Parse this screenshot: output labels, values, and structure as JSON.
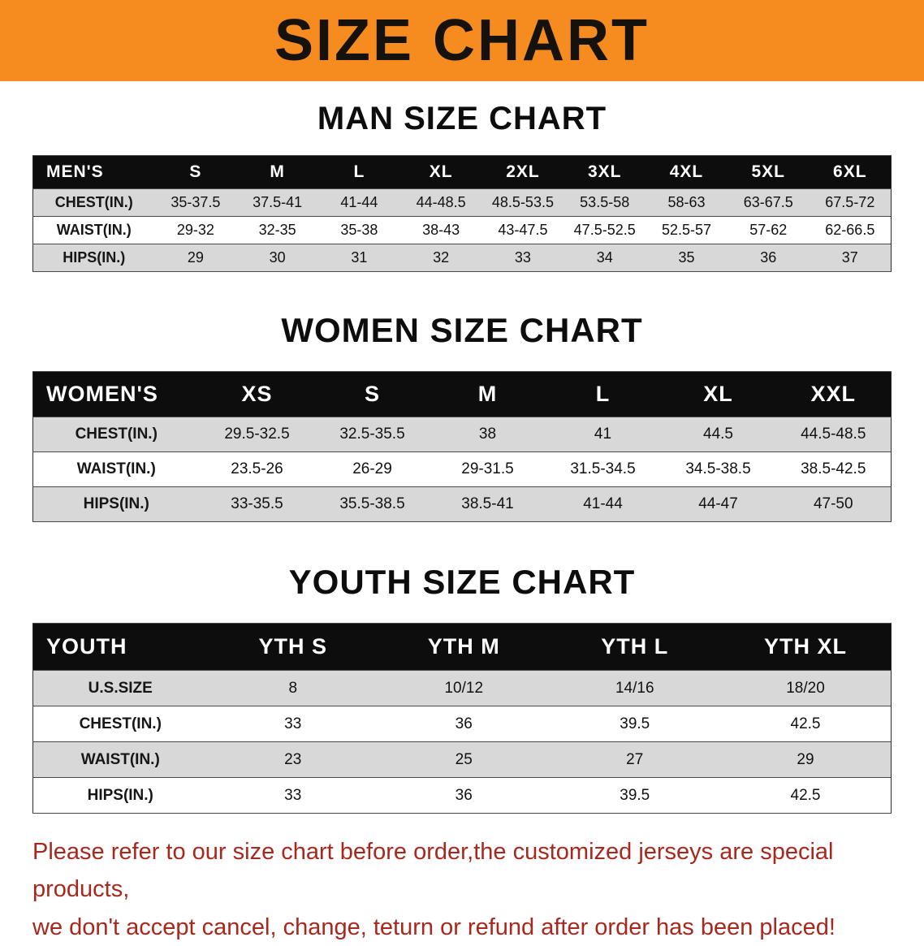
{
  "banner": {
    "title": "SIZE CHART"
  },
  "sections": [
    {
      "id": "man",
      "title": "MAN SIZE CHART",
      "table": {
        "header": [
          "MEN'S",
          "S",
          "M",
          "L",
          "XL",
          "2XL",
          "3XL",
          "4XL",
          "5XL",
          "6XL"
        ],
        "rows": [
          [
            "CHEST(IN.)",
            "35-37.5",
            "37.5-41",
            "41-44",
            "44-48.5",
            "48.5-53.5",
            "53.5-58",
            "58-63",
            "63-67.5",
            "67.5-72"
          ],
          [
            "WAIST(IN.)",
            "29-32",
            "32-35",
            "35-38",
            "38-43",
            "43-47.5",
            "47.5-52.5",
            "52.5-57",
            "57-62",
            "62-66.5"
          ],
          [
            "HIPS(IN.)",
            "29",
            "30",
            "31",
            "32",
            "33",
            "34",
            "35",
            "36",
            "37"
          ]
        ]
      }
    },
    {
      "id": "women",
      "title": "WOMEN SIZE CHART",
      "table": {
        "header": [
          "WOMEN'S",
          "XS",
          "S",
          "M",
          "L",
          "XL",
          "XXL"
        ],
        "rows": [
          [
            "CHEST(IN.)",
            "29.5-32.5",
            "32.5-35.5",
            "38",
            "41",
            "44.5",
            "44.5-48.5"
          ],
          [
            "WAIST(IN.)",
            "23.5-26",
            "26-29",
            "29-31.5",
            "31.5-34.5",
            "34.5-38.5",
            "38.5-42.5"
          ],
          [
            "HIPS(IN.)",
            "33-35.5",
            "35.5-38.5",
            "38.5-41",
            "41-44",
            "44-47",
            "47-50"
          ]
        ]
      }
    },
    {
      "id": "youth",
      "title": "YOUTH SIZE CHART",
      "table": {
        "header": [
          "YOUTH",
          "YTH S",
          "YTH M",
          "YTH L",
          "YTH XL"
        ],
        "rows": [
          [
            "U.S.SIZE",
            "8",
            "10/12",
            "14/16",
            "18/20"
          ],
          [
            "CHEST(IN.)",
            "33",
            "36",
            "39.5",
            "42.5"
          ],
          [
            "WAIST(IN.)",
            "23",
            "25",
            "27",
            "29"
          ],
          [
            "HIPS(IN.)",
            "33",
            "36",
            "39.5",
            "42.5"
          ]
        ]
      }
    }
  ],
  "footer": {
    "line1": "Please refer to our size chart before order,the customized jerseys are special products,",
    "line2": "we don't accept cancel, change, teturn or refund after order has been placed!"
  },
  "colors": {
    "banner-bg": "#f68b1f",
    "table-header-bg": "#0d0d0d",
    "stripe": "#d8d8d8",
    "footer-text": "#a8281e"
  }
}
